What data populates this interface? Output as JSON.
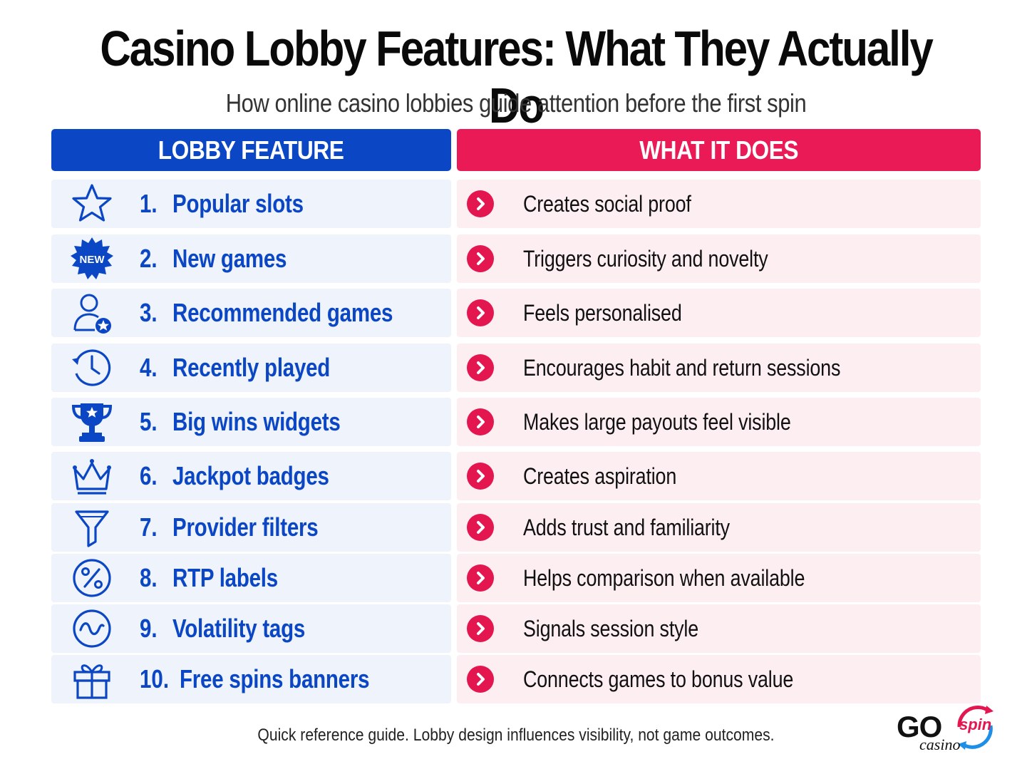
{
  "title": "Casino Lobby Features: What They Actually Do",
  "subtitle": "How online casino lobbies guide attention before the first spin",
  "table": {
    "header_left": "LOBBY FEATURE",
    "header_right": "WHAT IT DOES",
    "rows": [
      {
        "num": "1.",
        "feature": "Popular slots",
        "does": "Creates social proof",
        "icon": "star-icon"
      },
      {
        "num": "2.",
        "feature": "New games",
        "does": "Triggers curiosity and novelty",
        "icon": "new-badge-icon",
        "icon_text": "NEW"
      },
      {
        "num": "3.",
        "feature": "Recommended games",
        "does": "Feels personalised",
        "icon": "user-star-icon"
      },
      {
        "num": "4.",
        "feature": "Recently played",
        "does": "Encourages habit and return sessions",
        "icon": "history-clock-icon"
      },
      {
        "num": "5.",
        "feature": "Big wins widgets",
        "does": "Makes large payouts feel visible",
        "icon": "trophy-icon"
      },
      {
        "num": "6.",
        "feature": "Jackpot badges",
        "does": "Creates aspiration",
        "icon": "crown-icon"
      },
      {
        "num": "7.",
        "feature": "Provider filters",
        "does": "Adds trust and familiarity",
        "icon": "filter-icon"
      },
      {
        "num": "8.",
        "feature": "RTP labels",
        "does": "Helps comparison when available",
        "icon": "percent-icon"
      },
      {
        "num": "9.",
        "feature": "Volatility tags",
        "does": "Signals session style",
        "icon": "wave-icon"
      },
      {
        "num": "10.",
        "feature": "Free spins banners",
        "does": "Connects games to bonus value",
        "icon": "gift-icon"
      }
    ]
  },
  "footer": "Quick reference guide. Lobby design influences visibility, not game outcomes.",
  "logo": {
    "go": "GO",
    "spin": "spin",
    "casino": "casino"
  },
  "colors": {
    "blue": "#0b47c4",
    "pink": "#ea1a57",
    "blue_row": "#eef3fc",
    "pink_row": "#fdeef2"
  }
}
